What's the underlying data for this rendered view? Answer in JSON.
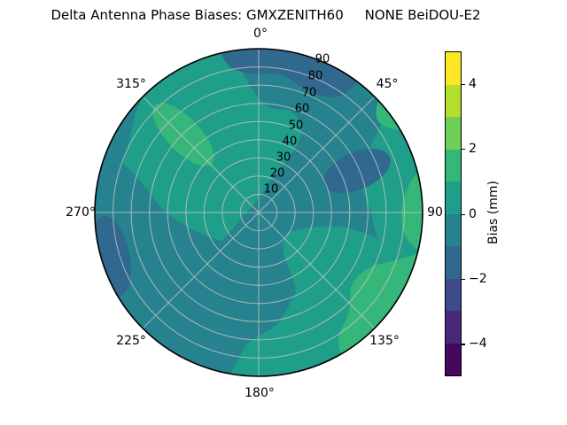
{
  "title": "Delta Antenna Phase Biases: GMXZENITH60     NONE BeiDOU-E2",
  "polar": {
    "angle_labels": [
      "0°",
      "45°",
      "90",
      "135°",
      "180°",
      "225°",
      "270°",
      "315°"
    ],
    "radial_labels": [
      "10",
      "20",
      "30",
      "40",
      "50",
      "60",
      "70",
      "80",
      "90"
    ]
  },
  "colors": {
    "p4_5": "#fde725",
    "p3_4": "#b5de2b",
    "p2_3": "#6ece58",
    "p1_2": "#35b779",
    "p0_1": "#1f9e89",
    "m1_0": "#26828e",
    "m2_m1": "#31688e",
    "m3_m2": "#3e4a89",
    "m4_m3": "#482878",
    "m5_m4": "#46085c",
    "grid": "#c2c2c2",
    "outline": "#000000"
  },
  "colorbar": {
    "label": "Bias (mm)",
    "ticks": [
      "4",
      "2",
      "0",
      "−2",
      "−4"
    ],
    "band_colors": [
      "#fde725",
      "#b5de2b",
      "#6ece58",
      "#35b779",
      "#1f9e89",
      "#26828e",
      "#31688e",
      "#3e4a89",
      "#482878",
      "#46085c"
    ]
  },
  "chart_data": {
    "type": "heatmap",
    "subtype": "polar_filled_contour",
    "title": "Delta Antenna Phase Biases: GMXZENITH60     NONE BeiDOU-E2",
    "azimuth_ticks_deg": [
      0,
      45,
      90,
      135,
      180,
      225,
      270,
      315
    ],
    "zenith_ticks_deg": [
      10,
      20,
      30,
      40,
      50,
      60,
      70,
      80,
      90
    ],
    "zenith_range": [
      0,
      90
    ],
    "colorbar_label": "Bias (mm)",
    "colorbar_ticks": [
      4,
      2,
      0,
      -2,
      -4
    ],
    "value_range": [
      -5,
      5
    ],
    "contour_levels": [
      -5,
      -4,
      -3,
      -2,
      -1,
      0,
      1,
      2,
      3,
      4,
      5
    ],
    "level_colors": [
      "#46085c",
      "#482878",
      "#3e4a89",
      "#31688e",
      "#26828e",
      "#1f9e89",
      "#35b779",
      "#6ece58",
      "#b5de2b",
      "#fde725"
    ],
    "regions": [
      {
        "bias_range": [
          -1,
          0
        ],
        "description": "base field over most of the disk (east, south-west and bottom-centre)"
      },
      {
        "bias_range": [
          0,
          1
        ],
        "description": "north-west quadrant from near centre to rim (az 255°–25°), east rim band az 52°–108° zen 60–90, south-east sector az 105°–195° zen 20–90"
      },
      {
        "bias_range": [
          1,
          2
        ],
        "description": "elongated blob at az 315° zen 40–80; rim crescent az 76°–103° zen 80–90; rim crescent az 105°–150° zen 65–90; small rim spot az 47°–60° zen 80–90"
      },
      {
        "bias_range": [
          -2,
          -1
        ],
        "description": "north rim band az 347°–37° zen 70–90; blob at az 67° zen 40–78; blob at az 254° zen 60–90 near west rim"
      }
    ],
    "legend_position": "right-colorbar",
    "grid": true
  }
}
